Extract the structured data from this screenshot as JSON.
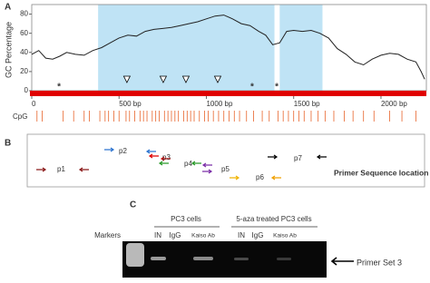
{
  "panel_labels": [
    "A",
    "B",
    "C"
  ],
  "chart_data": {
    "type": "line",
    "y_label": "GC Percentage",
    "row_label": "CpG",
    "color": "#222",
    "x": [
      0,
      40,
      80,
      120,
      160,
      200,
      250,
      300,
      350,
      400,
      450,
      500,
      550,
      600,
      650,
      700,
      750,
      800,
      850,
      900,
      950,
      1000,
      1050,
      1100,
      1150,
      1200,
      1250,
      1300,
      1340,
      1380,
      1420,
      1460,
      1500,
      1550,
      1600,
      1650,
      1700,
      1750,
      1800,
      1850,
      1900,
      1950,
      2000,
      2050,
      2100,
      2150,
      2200,
      2230,
      2250
    ],
    "values": [
      38,
      42,
      34,
      33,
      36,
      40,
      38,
      37,
      42,
      45,
      50,
      55,
      58,
      57,
      62,
      64,
      65,
      66,
      68,
      70,
      72,
      75,
      78,
      79,
      75,
      70,
      68,
      62,
      58,
      48,
      50,
      62,
      63,
      62,
      63,
      60,
      55,
      44,
      38,
      30,
      27,
      33,
      37,
      39,
      38,
      33,
      30,
      20,
      12
    ],
    "xlim": [
      0,
      2260
    ],
    "ylim": [
      0,
      90
    ],
    "xticks": [
      0,
      {
        "value": 500,
        "label": "500 bp"
      },
      {
        "value": 1000,
        "label": "1000 bp"
      },
      {
        "value": 1500,
        "label": "1500 bp"
      },
      {
        "value": 2000,
        "label": "2000 bp"
      }
    ],
    "yticks": [
      0,
      20,
      40,
      60,
      80
    ],
    "islands": [
      [
        380,
        1390
      ],
      [
        1420,
        1665
      ]
    ],
    "island_color": "#bfe3f5",
    "triangles": [
      545,
      753,
      883,
      1065
    ],
    "asterisks": {
      "label": "*",
      "x": [
        156,
        1262,
        1403
      ]
    },
    "cpg_sites": [
      30,
      60,
      180,
      240,
      300,
      330,
      390,
      420,
      440,
      470,
      500,
      540,
      560,
      590,
      620,
      640,
      660,
      690,
      710,
      730,
      760,
      780,
      800,
      820,
      840,
      870,
      890,
      910,
      930,
      960,
      990,
      1010,
      1040,
      1070,
      1100,
      1130,
      1160,
      1190,
      1230,
      1270,
      1320,
      1360,
      1410,
      1440,
      1470,
      1500,
      1530,
      1560,
      1600,
      1640,
      1680,
      1730,
      1790,
      1840,
      1900,
      1960,
      2050,
      2120,
      2200
    ],
    "cpg_color": "#e8632a",
    "bar_color": "#e00000"
  },
  "panel_b": {
    "primers": [
      "p1",
      "p2",
      "p3",
      "p4",
      "p5",
      "p6",
      "p7"
    ],
    "caption": "Primer Sequence location"
  },
  "panel_c": {
    "groups": [
      "PC3 cells",
      "5-aza treated PC3 cells"
    ],
    "markers": "Markers",
    "lanes": [
      "IN",
      "IgG",
      "Kaiso Ab",
      "IN",
      "IgG",
      "Kaiso Ab"
    ],
    "arrow_label": "Primer Set 3"
  }
}
